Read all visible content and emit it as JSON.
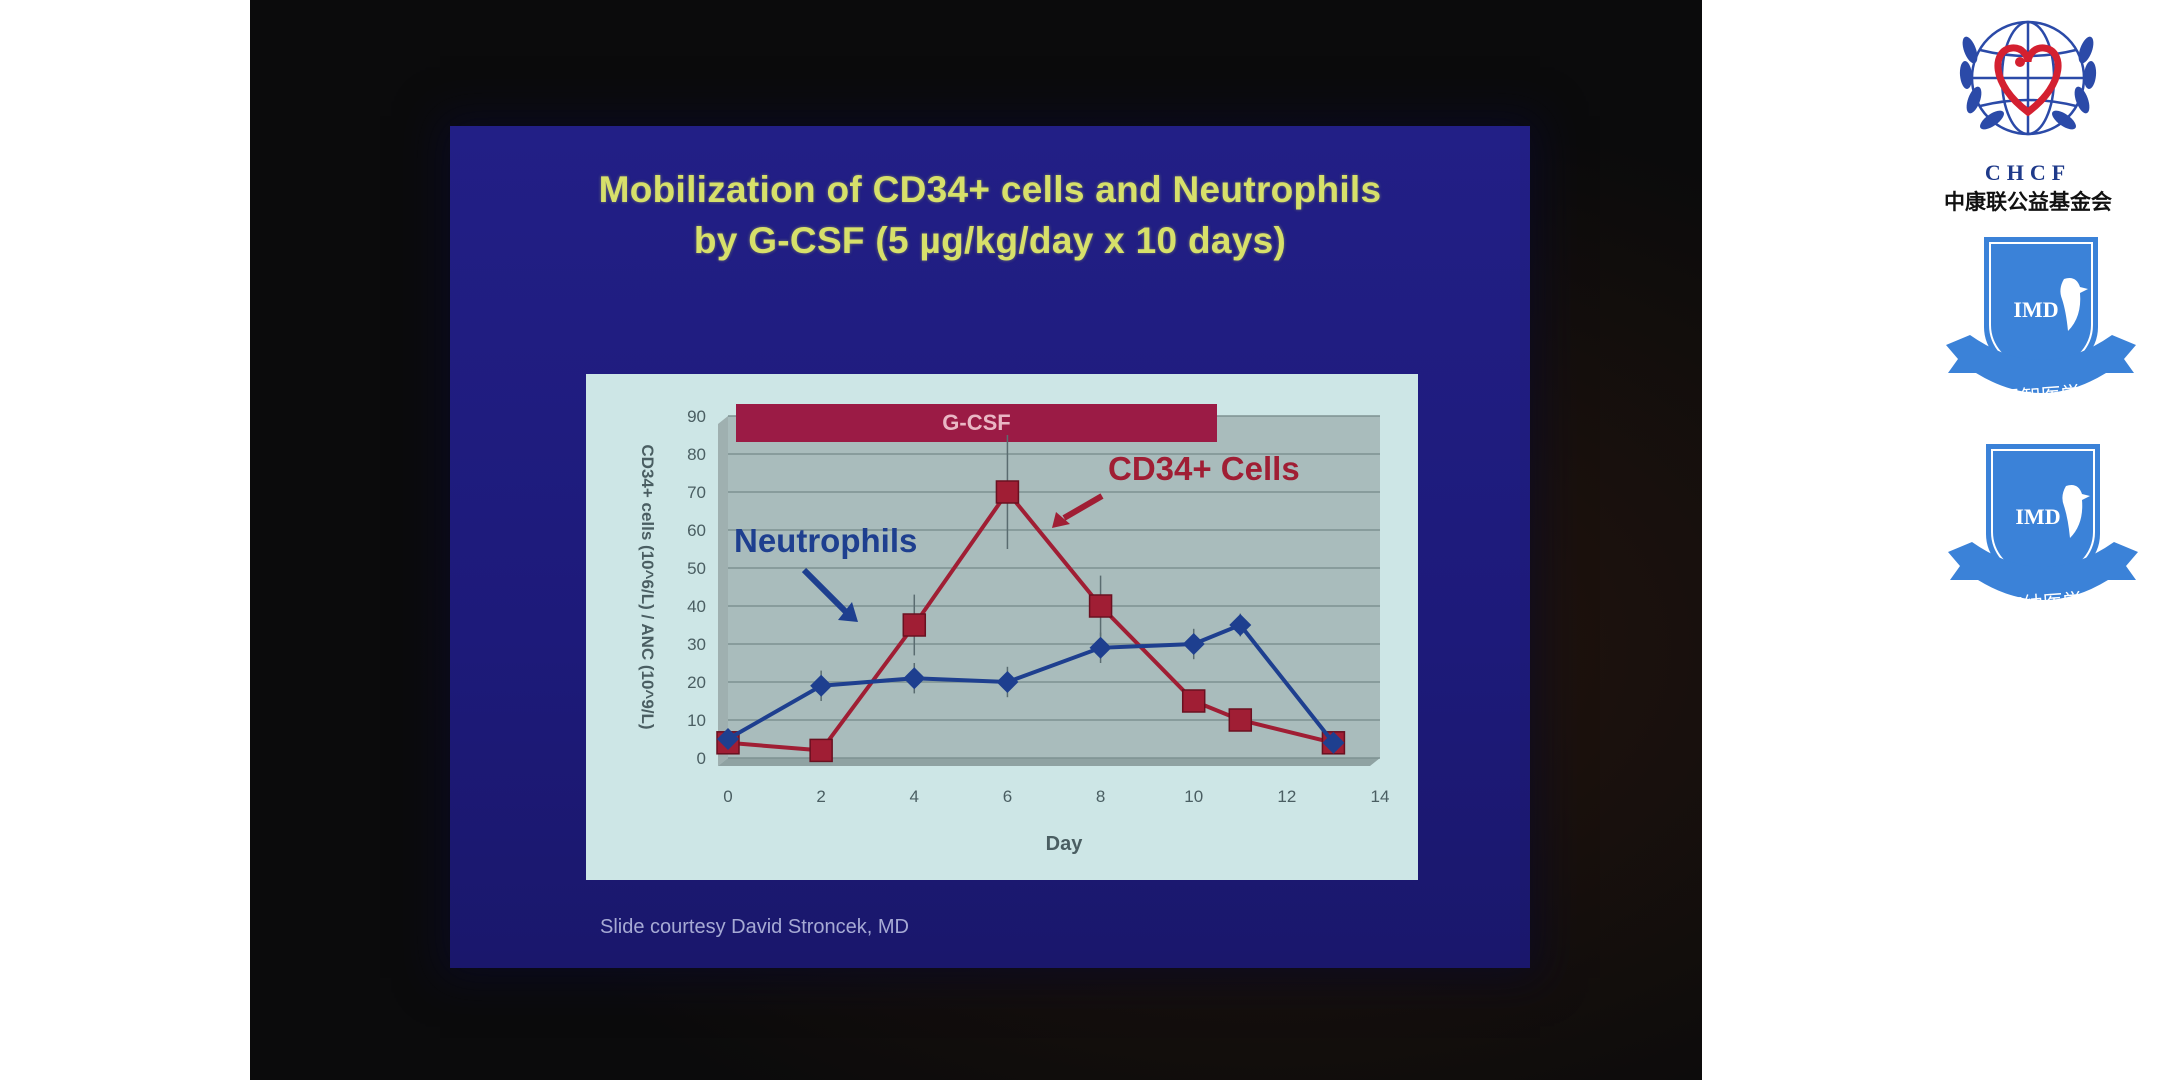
{
  "slide": {
    "title_line1": "Mobilization of CD34+ cells and Neutrophils",
    "title_line2": "by G-CSF (5 µg/kg/day x 10 days)",
    "courtesy": "Slide courtesy David Stroncek, MD"
  },
  "chart_data": {
    "type": "line",
    "xlabel": "Day",
    "ylabel": "CD34+ cells (10^6/L) / ANC (10^9/L)",
    "xlim": [
      0,
      14
    ],
    "ylim": [
      0,
      90
    ],
    "xticks": [
      0,
      2,
      4,
      6,
      8,
      10,
      12,
      14
    ],
    "yticks": [
      0,
      10,
      20,
      30,
      40,
      50,
      60,
      70,
      80,
      90
    ],
    "grid": true,
    "series": [
      {
        "name": "Neutrophils",
        "color": "#1e3f8f",
        "marker": "diamond",
        "x": [
          0,
          2,
          4,
          6,
          8,
          10,
          11,
          13
        ],
        "y": [
          5,
          19,
          21,
          20,
          29,
          30,
          35,
          4
        ],
        "err": [
          2,
          4,
          4,
          4,
          4,
          4,
          3,
          2
        ]
      },
      {
        "name": "CD34+ Cells",
        "color": "#a01e34",
        "marker": "square",
        "x": [
          0,
          2,
          4,
          6,
          8,
          10,
          11,
          13
        ],
        "y": [
          4,
          2,
          35,
          70,
          40,
          15,
          10,
          4
        ],
        "err": [
          2,
          1,
          8,
          15,
          8,
          3,
          2,
          1
        ]
      }
    ],
    "annotations": {
      "treatment_bar": {
        "label": "G-CSF",
        "x_start": 0,
        "x_end": 10.5,
        "color": "#9b1b45"
      }
    }
  },
  "logos": {
    "chcf_letters": "CHCF",
    "chcf_name": "中康联公益基金会",
    "imd_label": "IMD",
    "imd1_banner": "君智医学",
    "imd2_banner": "海纳医学"
  }
}
